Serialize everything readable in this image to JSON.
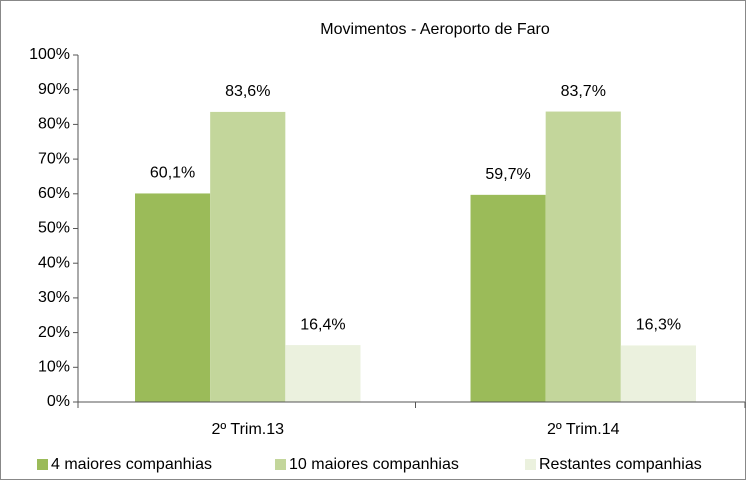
{
  "chart_data": {
    "type": "bar",
    "title": "Movimentos - Aeroporto de Faro",
    "categories": [
      "2º Trim.13",
      "2º Trim.14"
    ],
    "series": [
      {
        "name": "4 maiores companhias",
        "color": "#9bbb59",
        "values": [
          60.1,
          59.7
        ],
        "value_labels": [
          "60,1%",
          "59,7%"
        ]
      },
      {
        "name": "10 maiores companhias",
        "color": "#c3d69b",
        "values": [
          83.6,
          83.7
        ],
        "value_labels": [
          "83,6%",
          "83,7%"
        ]
      },
      {
        "name": "Restantes companhias",
        "color": "#ebf1de",
        "values": [
          16.4,
          16.3
        ],
        "value_labels": [
          "16,4%",
          "16,3%"
        ]
      }
    ],
    "ylim": [
      0,
      100
    ],
    "yticks": [
      {
        "value": 0,
        "label": "0%"
      },
      {
        "value": 10,
        "label": "10%"
      },
      {
        "value": 20,
        "label": "20%"
      },
      {
        "value": 30,
        "label": "30%"
      },
      {
        "value": 40,
        "label": "40%"
      },
      {
        "value": 50,
        "label": "50%"
      },
      {
        "value": 60,
        "label": "60%"
      },
      {
        "value": 70,
        "label": "70%"
      },
      {
        "value": 80,
        "label": "80%"
      },
      {
        "value": 90,
        "label": "90%"
      },
      {
        "value": 100,
        "label": "100%"
      }
    ],
    "legend": "bottom",
    "grid": false
  }
}
